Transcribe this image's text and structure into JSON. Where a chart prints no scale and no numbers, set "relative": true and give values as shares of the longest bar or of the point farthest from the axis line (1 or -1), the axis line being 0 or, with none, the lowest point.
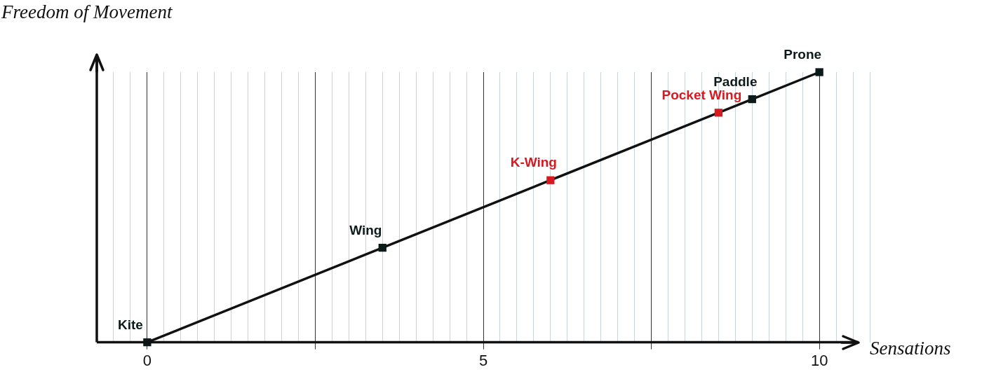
{
  "chart_data": {
    "type": "line",
    "xlabel": "Sensations",
    "ylabel": "Freedom of Movement",
    "relative": true,
    "x": [
      0,
      3.5,
      6,
      8.5,
      9,
      10
    ],
    "series": [
      {
        "color": "#111111",
        "values": [
          0,
          0.35,
          0.6,
          0.85,
          0.9,
          1
        ],
        "colors": [
          "#0d1a1a",
          "#0d1a1a",
          "#d71920",
          "#d71920",
          "#0d1a1a",
          "#0d1a1a"
        ]
      }
    ],
    "annotations": [
      {
        "text": "Kite",
        "x": 0,
        "y": 0
      },
      {
        "text": "Wing",
        "x": 3.5,
        "y": 0.35
      },
      {
        "text": "K-Wing",
        "x": 6,
        "y": 0.6
      },
      {
        "text": "Pocket Wing",
        "x": 8.5,
        "y": 0.85
      },
      {
        "text": "Paddle",
        "x": 9,
        "y": 0.9
      },
      {
        "text": "Prone",
        "x": 10,
        "y": 1
      }
    ],
    "xlim": [
      -0.75,
      10.75
    ],
    "xticks": [
      {
        "value": -0.5,
        "label": null
      },
      {
        "value": -0.25,
        "label": null
      },
      0,
      {
        "value": 0.25,
        "label": null
      },
      {
        "value": 0.5,
        "label": null
      },
      {
        "value": 0.75,
        "label": null
      },
      {
        "value": 1,
        "label": null
      },
      {
        "value": 1.25,
        "label": null
      },
      {
        "value": 1.5,
        "label": null
      },
      {
        "value": 1.75,
        "label": null
      },
      {
        "value": 2,
        "label": null
      },
      {
        "value": 2.25,
        "label": null
      },
      {
        "value": 2.5,
        "label": null
      },
      {
        "value": 2.75,
        "label": null
      },
      {
        "value": 3,
        "label": null
      },
      {
        "value": 3.25,
        "label": null
      },
      {
        "value": 3.5,
        "label": null
      },
      {
        "value": 3.75,
        "label": null
      },
      {
        "value": 4,
        "label": null
      },
      {
        "value": 4.25,
        "label": null
      },
      {
        "value": 4.5,
        "label": null
      },
      {
        "value": 4.75,
        "label": null
      },
      5,
      {
        "value": 5.25,
        "label": null
      },
      {
        "value": 5.5,
        "label": null
      },
      {
        "value": 5.75,
        "label": null
      },
      {
        "value": 6,
        "label": null
      },
      {
        "value": 6.25,
        "label": null
      },
      {
        "value": 6.5,
        "label": null
      },
      {
        "value": 6.75,
        "label": null
      },
      {
        "value": 7,
        "label": null
      },
      {
        "value": 7.25,
        "label": null
      },
      {
        "value": 7.5,
        "label": null
      },
      {
        "value": 7.75,
        "label": null
      },
      {
        "value": 8,
        "label": null
      },
      {
        "value": 8.25,
        "label": null
      },
      {
        "value": 8.5,
        "label": null
      },
      {
        "value": 8.75,
        "label": null
      },
      {
        "value": 9,
        "label": null
      },
      {
        "value": 9.25,
        "label": null
      },
      {
        "value": 9.5,
        "label": null
      },
      {
        "value": 9.75,
        "label": null
      },
      10,
      {
        "value": 10.25,
        "label": null
      },
      {
        "value": 10.5,
        "label": null
      },
      {
        "value": 10.75,
        "label": null
      }
    ],
    "grid": "x",
    "marker": "square",
    "line_style": "solid",
    "legend": false
  }
}
